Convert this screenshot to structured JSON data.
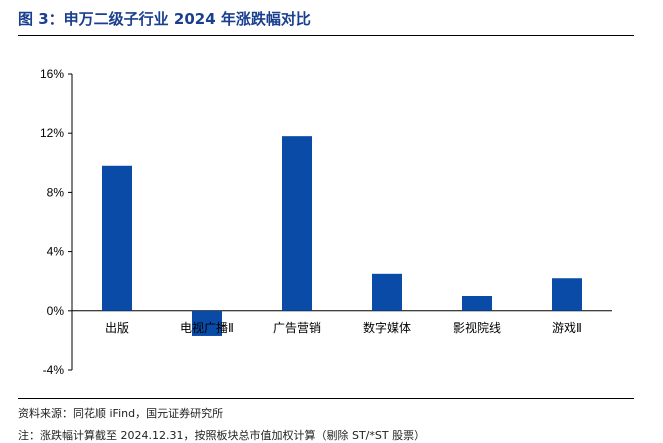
{
  "header": {
    "title": "图 3：申万二级子行业 2024 年涨跌幅对比"
  },
  "footer": {
    "source": "资料来源：同花顺 iFind，国元证券研究所",
    "note": "注：涨跌幅计算截至 2024.12.31，按照板块总市值加权计算（剔除 ST/*ST 股票）"
  },
  "colors": {
    "bar": "#0a4ba8",
    "title": "#1a3f8f"
  },
  "chart_data": {
    "type": "bar",
    "title": "",
    "xlabel": "",
    "ylabel": "",
    "categories": [
      "出版",
      "电视广播Ⅱ",
      "广告营销",
      "数字媒体",
      "影视院线",
      "游戏Ⅱ"
    ],
    "values": [
      9.8,
      -1.7,
      11.8,
      2.5,
      1.0,
      2.2
    ],
    "ylim": [
      -4,
      16
    ],
    "yticks": [
      -4,
      0,
      4,
      8,
      12,
      16
    ],
    "ytick_labels": [
      "-4%",
      "0%",
      "4%",
      "8%",
      "12%",
      "16%"
    ],
    "grid": false,
    "legend": "none"
  }
}
